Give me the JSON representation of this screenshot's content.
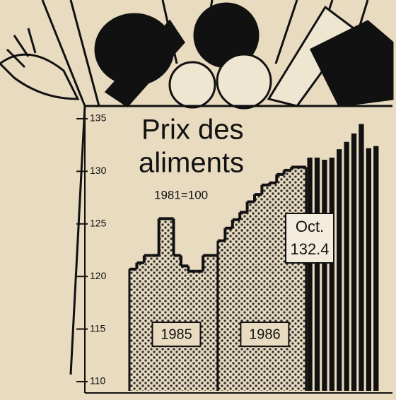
{
  "chart_data": {
    "type": "bar",
    "title": [
      "Prix des",
      "aliments"
    ],
    "subtitle": "1981=100",
    "annotation": [
      "Oct.",
      "132.4"
    ],
    "categories": [
      null,
      null,
      null,
      null,
      null,
      null,
      null,
      null,
      null,
      null,
      null,
      null,
      null,
      null,
      null,
      null,
      null,
      null,
      null,
      null,
      null,
      null,
      null,
      null,
      null,
      null,
      null,
      null,
      null,
      null,
      null,
      null,
      null,
      null
    ],
    "series": [
      {
        "name": "1985",
        "fill": "stipple",
        "values": [
          120.7,
          121.3,
          122.0,
          122.0,
          125.5,
          125.5,
          122.0,
          121.0,
          120.5,
          120.5,
          122.0,
          122.0,
          null,
          null,
          null,
          null,
          null,
          null,
          null,
          null,
          null,
          null,
          null,
          null,
          null,
          null,
          null,
          null,
          null,
          null,
          null,
          null,
          null,
          null
        ]
      },
      {
        "name": "1986",
        "fill": "stipple",
        "values": [
          null,
          null,
          null,
          null,
          null,
          null,
          null,
          null,
          null,
          null,
          null,
          null,
          123.4,
          124.6,
          125.4,
          126.1,
          127.1,
          127.8,
          128.7,
          128.9,
          129.7,
          130.1,
          130.4,
          130.4,
          null,
          null,
          null,
          null,
          null,
          null,
          null,
          null,
          null,
          null
        ]
      },
      {
        "fill": "solid",
        "values": [
          null,
          null,
          null,
          null,
          null,
          null,
          null,
          null,
          null,
          null,
          null,
          null,
          null,
          null,
          null,
          null,
          null,
          null,
          null,
          null,
          null,
          null,
          null,
          null,
          131.3,
          131.3,
          131.1,
          131.3,
          132.1,
          132.8,
          133.6,
          134.5,
          132.2,
          132.4
        ]
      }
    ],
    "color": "#111111",
    "ylim": [
      110,
      135
    ],
    "yticks": [
      110,
      115,
      120,
      125,
      130,
      135
    ]
  }
}
